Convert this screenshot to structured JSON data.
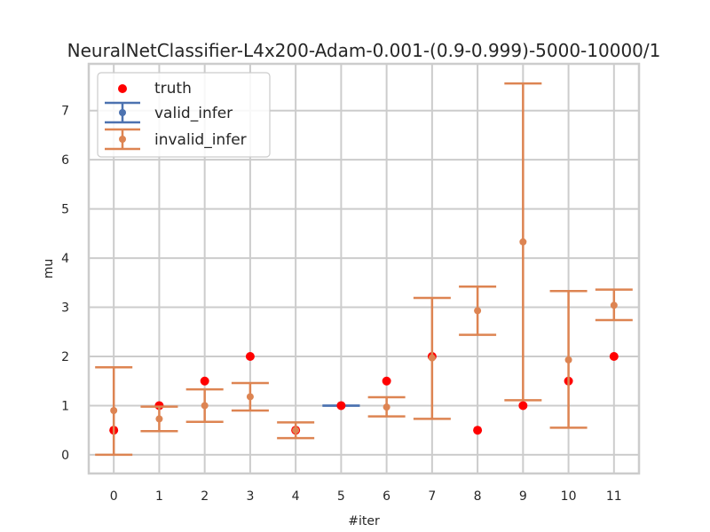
{
  "chart_data": {
    "type": "scatter",
    "title": "NeuralNetClassifier-L4x200-Adam-0.001-(0.9-0.999)-5000-10000/1",
    "xlabel": "#iter",
    "ylabel": "mu",
    "x_ticks": [
      "0",
      "1",
      "2",
      "3",
      "4",
      "5",
      "6",
      "7",
      "8",
      "9",
      "10",
      "11"
    ],
    "y_ticks": [
      "0",
      "1",
      "2",
      "3",
      "4",
      "5",
      "6",
      "7"
    ],
    "xlim": [
      -0.55,
      11.55
    ],
    "ylim": [
      -0.38,
      7.95
    ],
    "grid": true,
    "legend_position": "top-left",
    "colors": {
      "truth": "#ff0000",
      "valid_infer": "#4c72b0",
      "invalid_infer": "#dd8452",
      "grid": "#cccccc",
      "frame": "#cccccc"
    },
    "truth": {
      "name": "truth",
      "x": [
        0,
        1,
        2,
        3,
        4,
        5,
        6,
        7,
        8,
        9,
        10,
        11
      ],
      "y": [
        0.5,
        1.0,
        1.5,
        2.0,
        0.5,
        1.0,
        1.5,
        2.0,
        0.5,
        1.0,
        1.5,
        2.0
      ]
    },
    "valid_infer": {
      "name": "valid_infer",
      "x": [
        5
      ],
      "y": [
        1.0
      ],
      "err_low": [
        1.0
      ],
      "err_high": [
        1.0
      ]
    },
    "invalid_infer": {
      "name": "invalid_infer",
      "x": [
        0,
        1,
        2,
        3,
        4,
        6,
        7,
        8,
        9,
        10,
        11
      ],
      "y": [
        0.9,
        0.73,
        1.0,
        1.18,
        0.5,
        0.97,
        1.97,
        2.93,
        4.33,
        1.93,
        3.04
      ],
      "err_low": [
        0.0,
        0.48,
        0.67,
        0.9,
        0.34,
        0.78,
        0.73,
        2.44,
        1.11,
        0.55,
        2.74
      ],
      "err_high": [
        1.78,
        0.98,
        1.33,
        1.46,
        0.66,
        1.17,
        3.19,
        3.42,
        7.55,
        3.33,
        3.36
      ]
    }
  }
}
